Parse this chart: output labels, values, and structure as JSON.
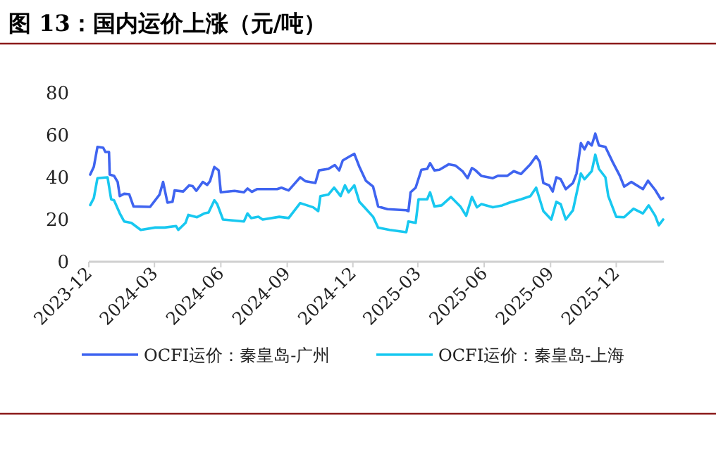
{
  "chart_data": {
    "type": "line",
    "title": "图 13：国内运价上涨（元/吨）",
    "xlim": [
      "2023-12-01",
      "2026-02-05"
    ],
    "xticks": [
      {
        "value": "2023-12-01",
        "label": "2023-12"
      },
      {
        "value": "2024-03-01",
        "label": "2024-03"
      },
      {
        "value": "2024-06-01",
        "label": "2024-06"
      },
      {
        "value": "2024-09-01",
        "label": "2024-09"
      },
      {
        "value": "2024-12-01",
        "label": "2024-12"
      },
      {
        "value": "2025-03-01",
        "label": "2025-03"
      },
      {
        "value": "2025-06-01",
        "label": "2025-06"
      },
      {
        "value": "2025-09-01",
        "label": "2025-09"
      },
      {
        "value": "2025-12-01",
        "label": "2025-12"
      }
    ],
    "ylim": [
      0,
      80
    ],
    "yticks": [
      0,
      20,
      40,
      60,
      80
    ],
    "grid": false,
    "legend": "bottom",
    "marker": "none",
    "line_style": "solid",
    "series": [
      {
        "name": "OCFI运价：秦皇岛-广州",
        "color": "#3f64f0",
        "x": [
          "2023-12-03",
          "2023-12-08",
          "2023-12-13",
          "2023-12-21",
          "2023-12-24",
          "2023-12-29",
          "2023-12-30",
          "2024-01-05",
          "2024-01-10",
          "2024-01-13",
          "2024-01-19",
          "2024-01-26",
          "2024-02-01",
          "2024-02-24",
          "2024-03-08",
          "2024-03-13",
          "2024-03-19",
          "2024-03-26",
          "2024-03-29",
          "2024-04-10",
          "2024-04-18",
          "2024-04-23",
          "2024-04-28",
          "2024-05-07",
          "2024-05-13",
          "2024-05-17",
          "2024-05-23",
          "2024-05-29",
          "2024-06-01",
          "2024-06-20",
          "2024-07-03",
          "2024-07-08",
          "2024-07-14",
          "2024-07-21",
          "2024-08-18",
          "2024-08-24",
          "2024-09-03",
          "2024-09-19",
          "2024-09-26",
          "2024-10-10",
          "2024-10-15",
          "2024-10-28",
          "2024-11-06",
          "2024-11-12",
          "2024-11-17",
          "2024-11-27",
          "2024-12-03",
          "2024-12-10",
          "2024-12-19",
          "2024-12-29",
          "2025-01-05",
          "2025-01-18",
          "2025-02-13",
          "2025-02-16",
          "2025-02-19",
          "2025-02-26",
          "2025-03-06",
          "2025-03-14",
          "2025-03-18",
          "2025-03-24",
          "2025-03-31",
          "2025-04-13",
          "2025-04-22",
          "2025-05-02",
          "2025-05-09",
          "2025-05-15",
          "2025-05-20",
          "2025-05-28",
          "2025-06-13",
          "2025-06-20",
          "2025-07-03",
          "2025-07-12",
          "2025-07-22",
          "2025-08-04",
          "2025-08-12",
          "2025-08-17",
          "2025-08-22",
          "2025-08-30",
          "2025-09-04",
          "2025-09-09",
          "2025-09-15",
          "2025-09-22",
          "2025-10-02",
          "2025-10-07",
          "2025-10-13",
          "2025-10-18",
          "2025-10-23",
          "2025-10-28",
          "2025-11-02",
          "2025-11-07",
          "2025-11-16",
          "2025-11-26",
          "2025-12-06",
          "2025-12-12",
          "2025-12-22",
          "2026-01-07",
          "2026-01-14",
          "2026-01-24",
          "2026-02-01",
          "2026-02-04"
        ],
        "values": [
          41.3,
          45,
          54.4,
          54,
          52,
          52,
          41.3,
          40.7,
          37.8,
          31.1,
          32.2,
          32,
          26.2,
          26,
          31.8,
          37.8,
          28,
          28.4,
          33.8,
          33.3,
          36.2,
          35.8,
          33.6,
          37.8,
          36.4,
          38.2,
          44.9,
          43.3,
          32.9,
          33.6,
          32.9,
          34.7,
          33.1,
          34.4,
          34.4,
          35.1,
          33.8,
          40,
          38.2,
          37.3,
          43.3,
          44,
          45.8,
          43.3,
          48,
          50,
          51.1,
          45,
          38.4,
          35.6,
          26.2,
          24.9,
          24.4,
          24,
          32.9,
          35.1,
          43.6,
          44,
          46.7,
          43.3,
          43.6,
          46.2,
          45.6,
          42.9,
          39.6,
          44.4,
          43.3,
          40.7,
          39.6,
          40.7,
          40.7,
          42.9,
          41.6,
          46.2,
          50,
          47.3,
          37.3,
          36.2,
          33.3,
          40,
          39.1,
          34.4,
          37.3,
          41.8,
          56.2,
          53.3,
          56.7,
          55.1,
          60.7,
          55.1,
          54.4,
          47.3,
          40.7,
          35.6,
          37.8,
          34.4,
          38.4,
          34,
          29.6,
          30.2
        ]
      },
      {
        "name": "OCFI运价：秦皇岛-上海",
        "color": "#18c8f0",
        "x": [
          "2023-12-03",
          "2023-12-08",
          "2023-12-13",
          "2023-12-27",
          "2024-01-01",
          "2024-01-05",
          "2024-01-13",
          "2024-01-19",
          "2024-01-29",
          "2024-02-11",
          "2024-03-02",
          "2024-03-15",
          "2024-03-31",
          "2024-04-03",
          "2024-04-13",
          "2024-04-17",
          "2024-04-29",
          "2024-05-09",
          "2024-05-15",
          "2024-05-23",
          "2024-05-27",
          "2024-06-04",
          "2024-07-03",
          "2024-07-08",
          "2024-07-13",
          "2024-07-23",
          "2024-07-29",
          "2024-08-21",
          "2024-09-03",
          "2024-09-19",
          "2024-10-07",
          "2024-10-14",
          "2024-10-17",
          "2024-10-28",
          "2024-11-05",
          "2024-11-14",
          "2024-11-20",
          "2024-11-25",
          "2024-12-03",
          "2024-12-10",
          "2024-12-19",
          "2024-12-29",
          "2025-01-05",
          "2025-01-21",
          "2025-02-13",
          "2025-02-16",
          "2025-02-26",
          "2025-03-02",
          "2025-03-14",
          "2025-03-18",
          "2025-03-24",
          "2025-04-03",
          "2025-04-16",
          "2025-04-29",
          "2025-05-07",
          "2025-05-15",
          "2025-05-22",
          "2025-05-28",
          "2025-06-13",
          "2025-06-26",
          "2025-07-06",
          "2025-07-22",
          "2025-08-04",
          "2025-08-12",
          "2025-08-22",
          "2025-09-02",
          "2025-09-09",
          "2025-09-15",
          "2025-09-22",
          "2025-10-02",
          "2025-10-13",
          "2025-10-18",
          "2025-10-28",
          "2025-11-02",
          "2025-11-07",
          "2025-11-16",
          "2025-11-20",
          "2025-12-01",
          "2025-12-12",
          "2025-12-25",
          "2026-01-07",
          "2026-01-15",
          "2026-01-24",
          "2026-01-29",
          "2026-02-04"
        ],
        "values": [
          26.9,
          30.2,
          39.6,
          40,
          29.6,
          29.1,
          22.9,
          19.1,
          18.4,
          15.1,
          16.2,
          16.2,
          16.9,
          15.1,
          18.4,
          22.2,
          21.1,
          22.9,
          23.3,
          29.1,
          27.3,
          20,
          19.1,
          22.9,
          20.7,
          21.3,
          20,
          21.3,
          20.7,
          27.8,
          25.8,
          24,
          31.1,
          31.8,
          35.1,
          31.1,
          36.2,
          32.9,
          36.2,
          28.4,
          25.1,
          21.3,
          16.2,
          15.1,
          14,
          19.1,
          18.4,
          29.6,
          29.6,
          32.9,
          26.2,
          26.7,
          30.7,
          26.2,
          21.8,
          30.7,
          25.8,
          27.3,
          25.8,
          26.7,
          28,
          29.6,
          31.1,
          35.1,
          24,
          20,
          28.4,
          27.3,
          20,
          24.4,
          41.8,
          39.1,
          42.9,
          50.7,
          44,
          40,
          31.1,
          21.3,
          21.1,
          25.1,
          22.9,
          26.7,
          21.8,
          17.3,
          20
        ]
      }
    ]
  }
}
